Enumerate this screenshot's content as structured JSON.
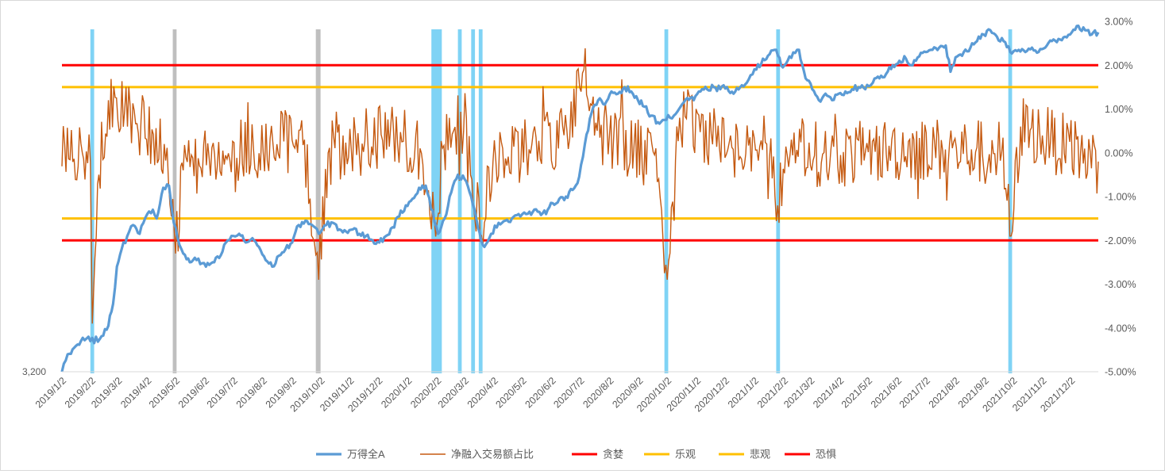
{
  "chart_data": {
    "type": "line",
    "title": "",
    "xlabel": "",
    "ylabel": "",
    "x_tick_labels": [
      "2019/1/2",
      "2019/2/2",
      "2019/3/2",
      "2019/4/2",
      "2019/5/2",
      "2019/6/2",
      "2019/7/2",
      "2019/8/2",
      "2019/9/2",
      "2019/10/2",
      "2019/11/2",
      "2019/12/2",
      "2020/1/2",
      "2020/2/2",
      "2020/3/2",
      "2020/4/2",
      "2020/5/2",
      "2020/6/2",
      "2020/7/2",
      "2020/8/2",
      "2020/9/2",
      "2020/10/2",
      "2020/11/2",
      "2020/12/2",
      "2021/1/2",
      "2021/2/2",
      "2021/3/2",
      "2021/4/2",
      "2021/5/2",
      "2021/6/2",
      "2021/7/2",
      "2021/8/2",
      "2021/9/2",
      "2021/10/2",
      "2021/11/2",
      "2021/12/2"
    ],
    "x_range": [
      "2019/1/2",
      "2021/12/31"
    ],
    "left_axis": {
      "tick_label": "3,200",
      "tick_value": 3200
    },
    "right_axis": {
      "tick_labels": [
        "3.00%",
        "2.00%",
        "1.00%",
        "0.00%",
        "-1.00%",
        "-2.00%",
        "-3.00%",
        "-4.00%",
        "-5.00%"
      ],
      "ylim": [
        -5,
        3
      ]
    },
    "grid": false,
    "legend_position": "bottom",
    "series": [
      {
        "name": "万得全A",
        "axis": "left",
        "color": "#5B9BD5",
        "points": [
          [
            "2019/1/2",
            -5.0
          ],
          [
            "2019/1/8",
            -4.6
          ],
          [
            "2019/1/15",
            -4.45
          ],
          [
            "2019/1/22",
            -4.3
          ],
          [
            "2019/1/30",
            -4.2
          ],
          [
            "2019/2/1",
            -4.3
          ],
          [
            "2019/2/11",
            -4.25
          ],
          [
            "2019/2/20",
            -3.95
          ],
          [
            "2019/2/25",
            -3.45
          ],
          [
            "2019/3/1",
            -2.6
          ],
          [
            "2019/3/6",
            -2.2
          ],
          [
            "2019/3/12",
            -1.9
          ],
          [
            "2019/3/18",
            -1.65
          ],
          [
            "2019/3/25",
            -1.85
          ],
          [
            "2019/3/29",
            -1.6
          ],
          [
            "2019/4/2",
            -1.4
          ],
          [
            "2019/4/8",
            -1.3
          ],
          [
            "2019/4/12",
            -1.5
          ],
          [
            "2019/4/19",
            -0.8
          ],
          [
            "2019/4/25",
            -0.75
          ],
          [
            "2019/4/30",
            -1.6
          ],
          [
            "2019/5/6",
            -2.1
          ],
          [
            "2019/5/10",
            -2.3
          ],
          [
            "2019/5/17",
            -2.5
          ],
          [
            "2019/5/24",
            -2.45
          ],
          [
            "2019/6/3",
            -2.6
          ],
          [
            "2019/6/10",
            -2.5
          ],
          [
            "2019/6/17",
            -2.4
          ],
          [
            "2019/6/24",
            -2.05
          ],
          [
            "2019/7/2",
            -1.9
          ],
          [
            "2019/7/8",
            -1.85
          ],
          [
            "2019/7/15",
            -2.05
          ],
          [
            "2019/7/22",
            -1.95
          ],
          [
            "2019/7/29",
            -2.15
          ],
          [
            "2019/8/5",
            -2.45
          ],
          [
            "2019/8/12",
            -2.6
          ],
          [
            "2019/8/19",
            -2.35
          ],
          [
            "2019/8/26",
            -2.2
          ],
          [
            "2019/9/2",
            -2.05
          ],
          [
            "2019/9/9",
            -1.65
          ],
          [
            "2019/9/16",
            -1.55
          ],
          [
            "2019/9/23",
            -1.65
          ],
          [
            "2019/9/30",
            -1.85
          ],
          [
            "2019/10/8",
            -1.65
          ],
          [
            "2019/10/15",
            -1.6
          ],
          [
            "2019/10/22",
            -1.75
          ],
          [
            "2019/10/29",
            -1.8
          ],
          [
            "2019/11/5",
            -1.75
          ],
          [
            "2019/11/12",
            -1.85
          ],
          [
            "2019/11/19",
            -1.9
          ],
          [
            "2019/11/26",
            -2.0
          ],
          [
            "2019/12/3",
            -2.05
          ],
          [
            "2019/12/10",
            -1.9
          ],
          [
            "2019/12/17",
            -1.7
          ],
          [
            "2019/12/24",
            -1.45
          ],
          [
            "2019/12/31",
            -1.2
          ],
          [
            "2020/1/7",
            -1.05
          ],
          [
            "2020/1/14",
            -0.8
          ],
          [
            "2020/1/21",
            -0.75
          ],
          [
            "2020/2/3",
            -1.85
          ],
          [
            "2020/2/10",
            -1.5
          ],
          [
            "2020/2/17",
            -0.9
          ],
          [
            "2020/2/24",
            -0.5
          ],
          [
            "2020/3/2",
            -0.6
          ],
          [
            "2020/3/9",
            -1.0
          ],
          [
            "2020/3/16",
            -1.7
          ],
          [
            "2020/3/23",
            -2.15
          ],
          [
            "2020/3/30",
            -1.85
          ],
          [
            "2020/4/7",
            -1.6
          ],
          [
            "2020/4/14",
            -1.55
          ],
          [
            "2020/4/21",
            -1.5
          ],
          [
            "2020/4/28",
            -1.4
          ],
          [
            "2020/5/6",
            -1.4
          ],
          [
            "2020/5/13",
            -1.35
          ],
          [
            "2020/5/20",
            -1.35
          ],
          [
            "2020/5/27",
            -1.4
          ],
          [
            "2020/6/3",
            -1.15
          ],
          [
            "2020/6/10",
            -1.05
          ],
          [
            "2020/6/17",
            -1.0
          ],
          [
            "2020/6/24",
            -0.85
          ],
          [
            "2020/7/1",
            -0.55
          ],
          [
            "2020/7/7",
            0.2
          ],
          [
            "2020/7/14",
            0.9
          ],
          [
            "2020/7/21",
            1.2
          ],
          [
            "2020/7/28",
            1.1
          ],
          [
            "2020/8/4",
            1.4
          ],
          [
            "2020/8/11",
            1.35
          ],
          [
            "2020/8/18",
            1.5
          ],
          [
            "2020/8/25",
            1.4
          ],
          [
            "2020/9/1",
            1.2
          ],
          [
            "2020/9/8",
            1.05
          ],
          [
            "2020/9/15",
            0.85
          ],
          [
            "2020/9/22",
            0.7
          ],
          [
            "2020/9/29",
            0.75
          ],
          [
            "2020/10/9",
            0.85
          ],
          [
            "2020/10/16",
            1.05
          ],
          [
            "2020/10/23",
            1.25
          ],
          [
            "2020/10/30",
            1.2
          ],
          [
            "2020/11/6",
            1.4
          ],
          [
            "2020/11/13",
            1.45
          ],
          [
            "2020/11/20",
            1.5
          ],
          [
            "2020/11/27",
            1.45
          ],
          [
            "2020/12/4",
            1.5
          ],
          [
            "2020/12/11",
            1.35
          ],
          [
            "2020/12/18",
            1.5
          ],
          [
            "2020/12/25",
            1.6
          ],
          [
            "2021/1/4",
            1.9
          ],
          [
            "2021/1/11",
            2.15
          ],
          [
            "2021/1/18",
            2.25
          ],
          [
            "2021/1/25",
            2.35
          ],
          [
            "2021/2/1",
            1.95
          ],
          [
            "2021/2/8",
            2.2
          ],
          [
            "2021/2/18",
            2.35
          ],
          [
            "2021/2/25",
            1.7
          ],
          [
            "2021/3/4",
            1.45
          ],
          [
            "2021/3/11",
            1.2
          ],
          [
            "2021/3/18",
            1.35
          ],
          [
            "2021/3/25",
            1.2
          ],
          [
            "2021/4/1",
            1.35
          ],
          [
            "2021/4/8",
            1.4
          ],
          [
            "2021/4/15",
            1.45
          ],
          [
            "2021/4/22",
            1.5
          ],
          [
            "2021/4/29",
            1.45
          ],
          [
            "2021/5/7",
            1.6
          ],
          [
            "2021/5/14",
            1.7
          ],
          [
            "2021/5/21",
            1.8
          ],
          [
            "2021/5/28",
            2.0
          ],
          [
            "2021/6/4",
            2.1
          ],
          [
            "2021/6/11",
            2.15
          ],
          [
            "2021/6/18",
            2.0
          ],
          [
            "2021/6/25",
            2.2
          ],
          [
            "2021/7/2",
            2.3
          ],
          [
            "2021/7/9",
            2.35
          ],
          [
            "2021/7/16",
            2.4
          ],
          [
            "2021/7/23",
            2.45
          ],
          [
            "2021/7/28",
            1.85
          ],
          [
            "2021/8/4",
            2.2
          ],
          [
            "2021/8/11",
            2.3
          ],
          [
            "2021/8/18",
            2.4
          ],
          [
            "2021/8/25",
            2.55
          ],
          [
            "2021/9/1",
            2.7
          ],
          [
            "2021/9/8",
            2.8
          ],
          [
            "2021/9/15",
            2.65
          ],
          [
            "2021/9/22",
            2.55
          ],
          [
            "2021/9/29",
            2.3
          ],
          [
            "2021/10/8",
            2.35
          ],
          [
            "2021/10/15",
            2.3
          ],
          [
            "2021/10/22",
            2.4
          ],
          [
            "2021/10/29",
            2.3
          ],
          [
            "2021/11/5",
            2.4
          ],
          [
            "2021/11/12",
            2.55
          ],
          [
            "2021/11/19",
            2.6
          ],
          [
            "2021/11/26",
            2.65
          ],
          [
            "2021/12/3",
            2.75
          ],
          [
            "2021/12/10",
            2.9
          ],
          [
            "2021/12/17",
            2.8
          ],
          [
            "2021/12/24",
            2.7
          ],
          [
            "2021/12/31",
            2.75
          ]
        ]
      },
      {
        "name": "净融入交易额占比",
        "axis": "right",
        "color": "#C55A11",
        "anchors": [
          [
            "2019/1/2",
            0.1
          ],
          [
            "2019/2/1",
            -0.2
          ],
          [
            "2019/2/3",
            -3.9
          ],
          [
            "2019/2/10",
            -0.5
          ],
          [
            "2019/2/20",
            1.2
          ],
          [
            "2019/3/15",
            0.8
          ],
          [
            "2019/4/20",
            0.2
          ],
          [
            "2019/5/2",
            -2.3
          ],
          [
            "2019/5/10",
            -0.4
          ],
          [
            "2019/6/15",
            -0.1
          ],
          [
            "2019/8/1",
            0.2
          ],
          [
            "2019/9/15",
            0.3
          ],
          [
            "2019/9/30",
            -2.9
          ],
          [
            "2019/10/10",
            0.0
          ],
          [
            "2019/12/15",
            0.4
          ],
          [
            "2020/1/15",
            0.1
          ],
          [
            "2020/2/2",
            -1.6
          ],
          [
            "2020/2/15",
            0.8
          ],
          [
            "2020/3/1",
            0.5
          ],
          [
            "2020/3/20",
            -1.9
          ],
          [
            "2020/4/1",
            -0.2
          ],
          [
            "2020/5/15",
            0.2
          ],
          [
            "2020/6/15",
            0.4
          ],
          [
            "2020/7/6",
            1.9
          ],
          [
            "2020/7/20",
            0.5
          ],
          [
            "2020/8/15",
            0.2
          ],
          [
            "2020/9/20",
            0.1
          ],
          [
            "2020/10/2",
            -2.9
          ],
          [
            "2020/10/15",
            0.8
          ],
          [
            "2020/12/15",
            0.1
          ],
          [
            "2021/1/15",
            0.2
          ],
          [
            "2021/1/28",
            -1.6
          ],
          [
            "2021/2/10",
            0.3
          ],
          [
            "2021/3/15",
            -0.1
          ],
          [
            "2021/6/15",
            0.1
          ],
          [
            "2021/9/20",
            0.0
          ],
          [
            "2021/9/30",
            -1.9
          ],
          [
            "2021/10/10",
            0.6
          ],
          [
            "2021/12/31",
            -0.2
          ]
        ]
      },
      {
        "name": "贪婪",
        "axis": "right",
        "color": "#FF0000",
        "value": 2.0
      },
      {
        "name": "乐观",
        "axis": "right",
        "color": "#FFC000",
        "value": 1.5
      },
      {
        "name": "悲观",
        "axis": "right",
        "color": "#FFC000",
        "value": -1.5
      },
      {
        "name": "恐惧",
        "axis": "right",
        "color": "#FF0000",
        "value": -2.0
      }
    ],
    "highlight_bands": [
      {
        "start": "2019/2/1",
        "end": "2019/2/5",
        "color": "#7FD3F5"
      },
      {
        "start": "2019/4/29",
        "end": "2019/5/3",
        "color": "#BFBFBF"
      },
      {
        "start": "2019/9/27",
        "end": "2019/10/2",
        "color": "#BFBFBF"
      },
      {
        "start": "2020/1/27",
        "end": "2020/2/7",
        "color": "#7FD3F5"
      },
      {
        "start": "2020/2/24",
        "end": "2020/2/28",
        "color": "#7FD3F5"
      },
      {
        "start": "2020/3/9",
        "end": "2020/3/13",
        "color": "#7FD3F5"
      },
      {
        "start": "2020/3/17",
        "end": "2020/3/21",
        "color": "#7FD3F5"
      },
      {
        "start": "2020/9/29",
        "end": "2020/10/3",
        "color": "#7FD3F5"
      },
      {
        "start": "2021/1/25",
        "end": "2021/1/29",
        "color": "#7FD3F5"
      },
      {
        "start": "2021/9/27",
        "end": "2021/10/1",
        "color": "#7FD3F5"
      }
    ]
  }
}
